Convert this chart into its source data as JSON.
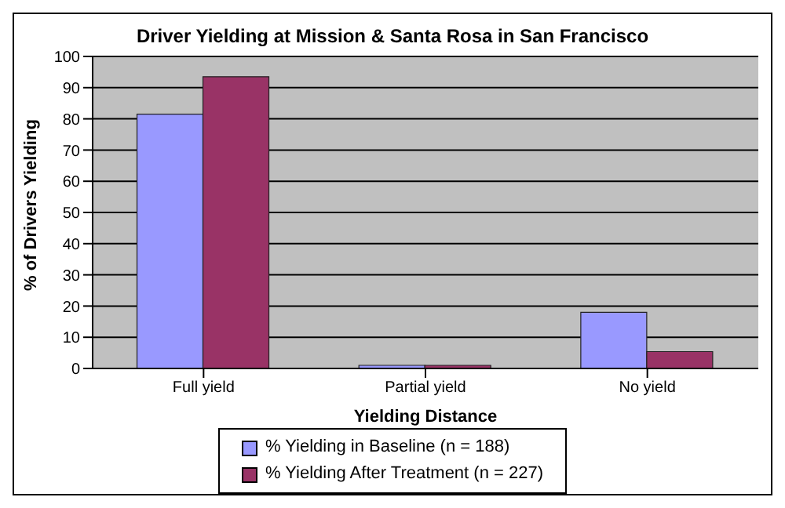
{
  "chart_data": {
    "type": "bar",
    "title": "Driver Yielding at Mission & Santa Rosa in San Francisco",
    "xlabel": "Yielding Distance",
    "ylabel": "% of Drivers Yielding",
    "categories": [
      "Full yield",
      "Partial yield",
      "No yield"
    ],
    "series": [
      {
        "name": "% Yielding in Baseline (n = 188)",
        "color": "#9999ff",
        "values": [
          81.5,
          1,
          18
        ]
      },
      {
        "name": "% Yielding After Treatment (n = 227)",
        "color": "#993366",
        "values": [
          93.5,
          1,
          5.4
        ]
      }
    ],
    "ylim": [
      0,
      100
    ],
    "yticks": [
      0,
      10,
      20,
      30,
      40,
      50,
      60,
      70,
      80,
      90,
      100
    ],
    "grid": "y",
    "legend": "bottom"
  }
}
